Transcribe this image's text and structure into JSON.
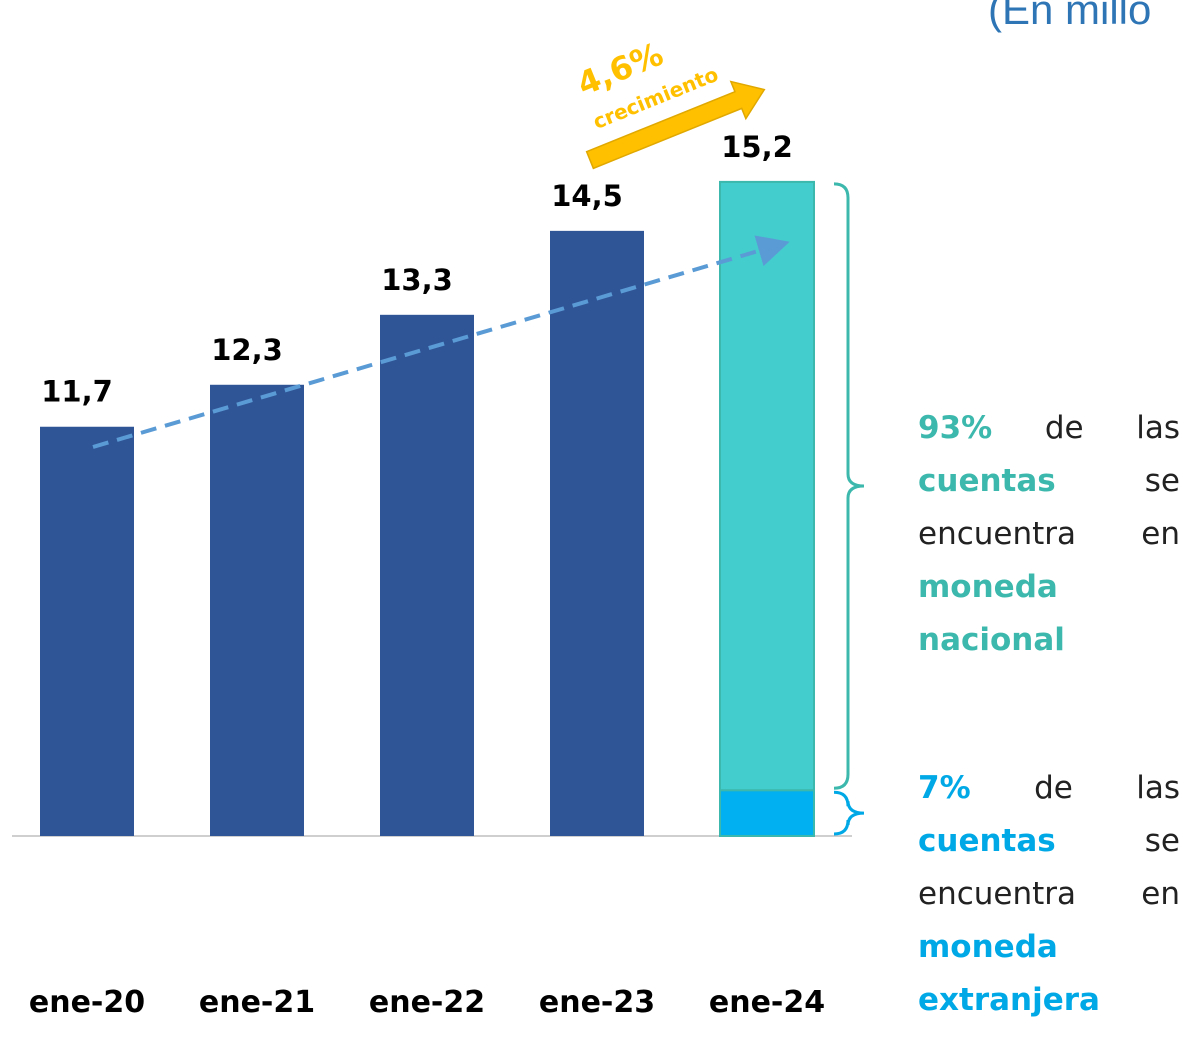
{
  "chart_data": {
    "type": "bar",
    "title": "(En millo",
    "categories": [
      "ene-20",
      "ene-21",
      "ene-22",
      "ene-23",
      "ene-24"
    ],
    "values": [
      11.7,
      12.3,
      13.3,
      14.5,
      15.2
    ],
    "value_labels": [
      "11,7",
      "12,3",
      "13,3",
      "14,5",
      "15,2"
    ],
    "color": "#2f5597",
    "ylim": [
      5.85,
      17.8
    ],
    "breakdown": {
      "category": "ene-24",
      "segments": [
        {
          "name": "moneda nacional",
          "share": 93,
          "color": "#43cdcd",
          "brace_color": "#3cb8ac",
          "parts": [
            "93%",
            " de las ",
            "cuentas",
            " se encuentra en ",
            "moneda nacional"
          ]
        },
        {
          "name": "moneda extranjera",
          "share": 7,
          "color": "#00b0f0",
          "brace_color": "#00a9e6",
          "parts": [
            "7%",
            " de las ",
            "cuentas",
            " se encuentra en ",
            "moneda extranjera"
          ]
        }
      ]
    },
    "annotations": {
      "growth": "4,6%",
      "growth_label": "crecimiento",
      "growth_color": "#ffc000",
      "trend_color": "#5b9bd5"
    }
  }
}
